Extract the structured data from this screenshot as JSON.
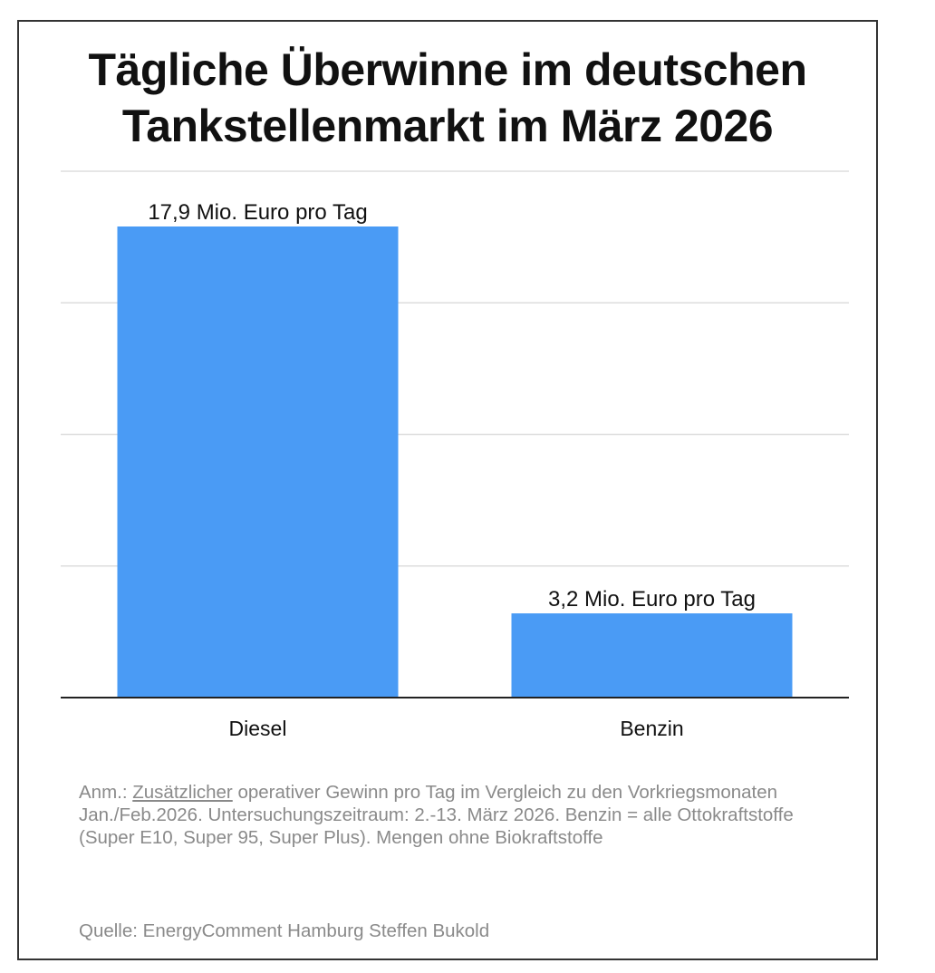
{
  "chart_data": {
    "type": "bar",
    "title_line1": "Tägliche Überwinne im deutschen",
    "title_line2": "Tankstellenmarkt im März 2026",
    "categories": [
      "Diesel",
      "Benzin"
    ],
    "values": [
      17.9,
      3.2
    ],
    "data_labels": [
      "17,9 Mio. Euro pro Tag",
      "3,2 Mio. Euro pro Tag"
    ],
    "unit": "Mio. Euro pro Tag",
    "ylim": [
      0,
      20
    ],
    "grid": true,
    "xlabel": "",
    "ylabel": "",
    "bar_color": "#4a9bf5"
  },
  "note": {
    "prefix": "Anm.: ",
    "underlined": "Zusätzlicher",
    "rest": " operativer Gewinn pro Tag im Vergleich zu den Vorkriegsmonaten Jan./Feb.2026. Untersuchungszeitraum: 2.-13. März 2026. Benzin = alle Ottokraftstoffe (Super E10, Super 95, Super Plus). Mengen ohne Biokraftstoffe"
  },
  "source": "Quelle: EnergyComment Hamburg Steffen Bukold"
}
